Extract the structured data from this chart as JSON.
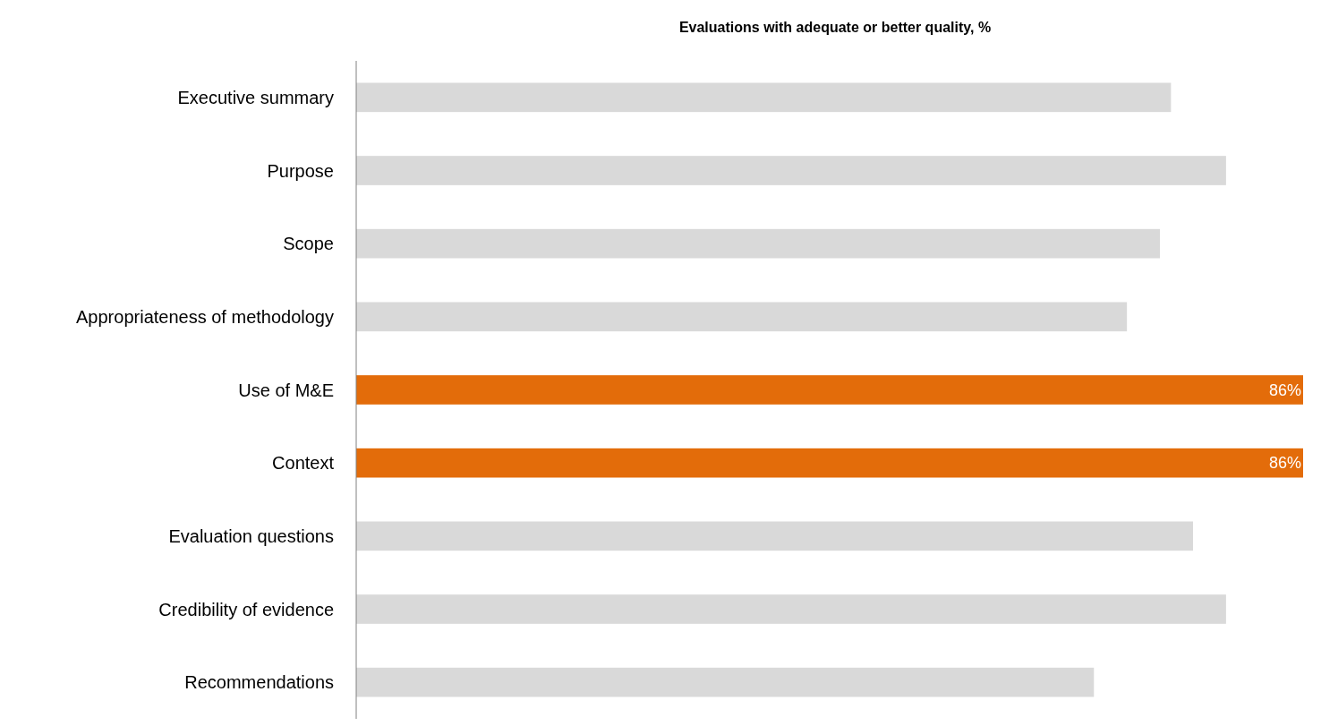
{
  "chart_data": {
    "type": "bar",
    "orientation": "horizontal",
    "title": "Evaluations with adequate or better quality, %",
    "categories": [
      "Executive summary",
      "Purpose",
      "Scope",
      "Appropriateness of methodology",
      "Use of M&E",
      "Context",
      "Evaluation questions",
      "Credibility of evidence",
      "Recommendations"
    ],
    "values": [
      74,
      79,
      73,
      70,
      86,
      86,
      76,
      79,
      67
    ],
    "colors": [
      "#d9d9d9",
      "#d9d9d9",
      "#d9d9d9",
      "#d9d9d9",
      "#e36c0a",
      "#e36c0a",
      "#d9d9d9",
      "#d9d9d9",
      "#d9d9d9"
    ],
    "value_labels": [
      null,
      null,
      null,
      null,
      "86%",
      "86%",
      null,
      null,
      null
    ]
  }
}
